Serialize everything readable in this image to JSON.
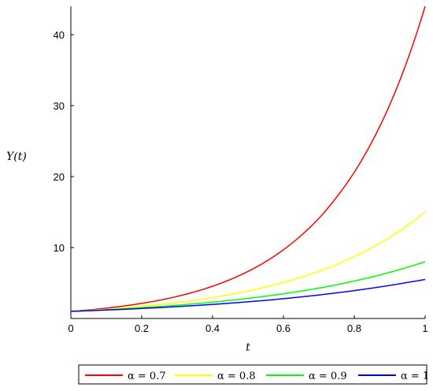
{
  "chart_data": {
    "type": "line",
    "title": "",
    "xlabel": "t",
    "ylabel": "Y(t)",
    "xlim": [
      0,
      1
    ],
    "ylim": [
      0,
      44
    ],
    "grid": false,
    "legend_position": "bottom",
    "x_ticks": [
      0,
      0.2,
      0.4,
      0.6,
      0.8,
      1
    ],
    "x_tick_labels": [
      "0",
      "0.2",
      "0.4",
      "0.6",
      "0.8",
      "1"
    ],
    "y_ticks": [
      10,
      20,
      30,
      40
    ],
    "y_tick_labels": [
      "10",
      "20",
      "30",
      "40"
    ],
    "x": [
      0,
      0.05,
      0.1,
      0.15,
      0.2,
      0.25,
      0.3,
      0.35,
      0.4,
      0.45,
      0.5,
      0.55,
      0.6,
      0.65,
      0.7,
      0.75,
      0.8,
      0.85,
      0.9,
      0.95,
      1.0
    ],
    "series": [
      {
        "name": "α = 0.7",
        "color": "#ff0000",
        "values": [
          1.0,
          1.21,
          1.46,
          1.76,
          2.13,
          2.57,
          3.11,
          3.76,
          4.54,
          5.49,
          6.63,
          8.01,
          9.68,
          11.7,
          14.1,
          17.1,
          20.6,
          24.9,
          30.1,
          36.4,
          44.0
        ]
      },
      {
        "name": "α = 0.8",
        "color": "#ffff00",
        "values": [
          1.0,
          1.14,
          1.31,
          1.5,
          1.72,
          1.97,
          2.25,
          2.58,
          2.95,
          3.38,
          3.87,
          4.43,
          5.07,
          5.8,
          6.64,
          7.61,
          8.71,
          9.97,
          11.4,
          13.1,
          15.0
        ]
      },
      {
        "name": "α = 0.9",
        "color": "#00ff00",
        "values": [
          1.0,
          1.11,
          1.23,
          1.37,
          1.52,
          1.68,
          1.87,
          2.07,
          2.3,
          2.55,
          2.83,
          3.14,
          3.48,
          3.86,
          4.28,
          4.75,
          5.28,
          5.85,
          6.5,
          7.21,
          8.0
        ]
      },
      {
        "name": "α = 1",
        "color": "#0000ff",
        "values": [
          1.0,
          1.09,
          1.19,
          1.29,
          1.41,
          1.53,
          1.67,
          1.82,
          1.98,
          2.16,
          2.35,
          2.56,
          2.79,
          3.04,
          3.31,
          3.61,
          3.93,
          4.28,
          4.66,
          5.08,
          5.5
        ]
      }
    ]
  }
}
